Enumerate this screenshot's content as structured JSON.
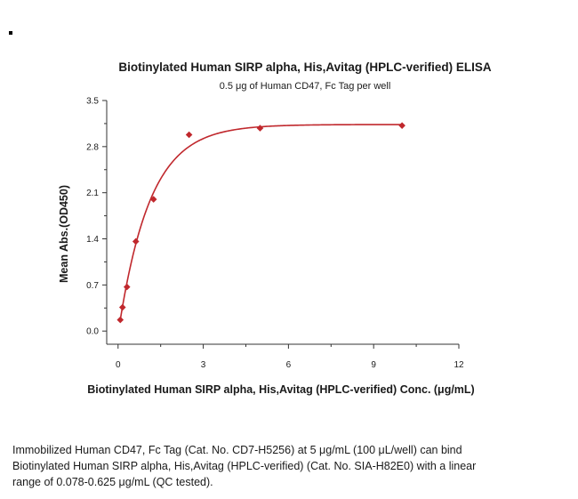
{
  "chart_data": {
    "type": "scatter",
    "title": "Biotinylated Human SIRP alpha, His,Avitag (HPLC-verified) ELISA",
    "subtitle": "0.5 μg of Human CD47, Fc Tag per well",
    "xlabel": "Biotinylated Human SIRP alpha, His,Avitag (HPLC-verified) Conc. (μg/mL)",
    "ylabel": "Mean Abs.(OD450)",
    "xlim": [
      -0.4,
      12
    ],
    "ylim": [
      -0.2,
      3.5
    ],
    "xticks": [
      0,
      3,
      6,
      9,
      12
    ],
    "yticks": [
      0.0,
      0.7,
      1.4,
      2.1,
      2.8,
      3.5
    ],
    "ytick_labels": [
      "0.0",
      "0.7",
      "1.4",
      "2.1",
      "2.8",
      "3.5"
    ],
    "series": [
      {
        "color": "#c0282d",
        "marker": "diamond",
        "x": [
          0.078,
          0.156,
          0.313,
          0.625,
          1.25,
          2.5,
          5,
          10
        ],
        "y": [
          0.17,
          0.36,
          0.67,
          1.36,
          2.0,
          2.98,
          3.08,
          3.12
        ]
      }
    ],
    "fit_curve": true,
    "grid": false
  },
  "caption": {
    "lines": [
      "Immobilized Human CD47, Fc Tag (Cat. No. CD7-H5256) at 5 μg/mL (100 μL/well) can bind",
      "Biotinylated Human SIRP alpha, His,Avitag (HPLC-verified) (Cat. No. SIA-H82E0) with a linear",
      "range of 0.078-0.625 μg/mL (QC tested)."
    ]
  }
}
